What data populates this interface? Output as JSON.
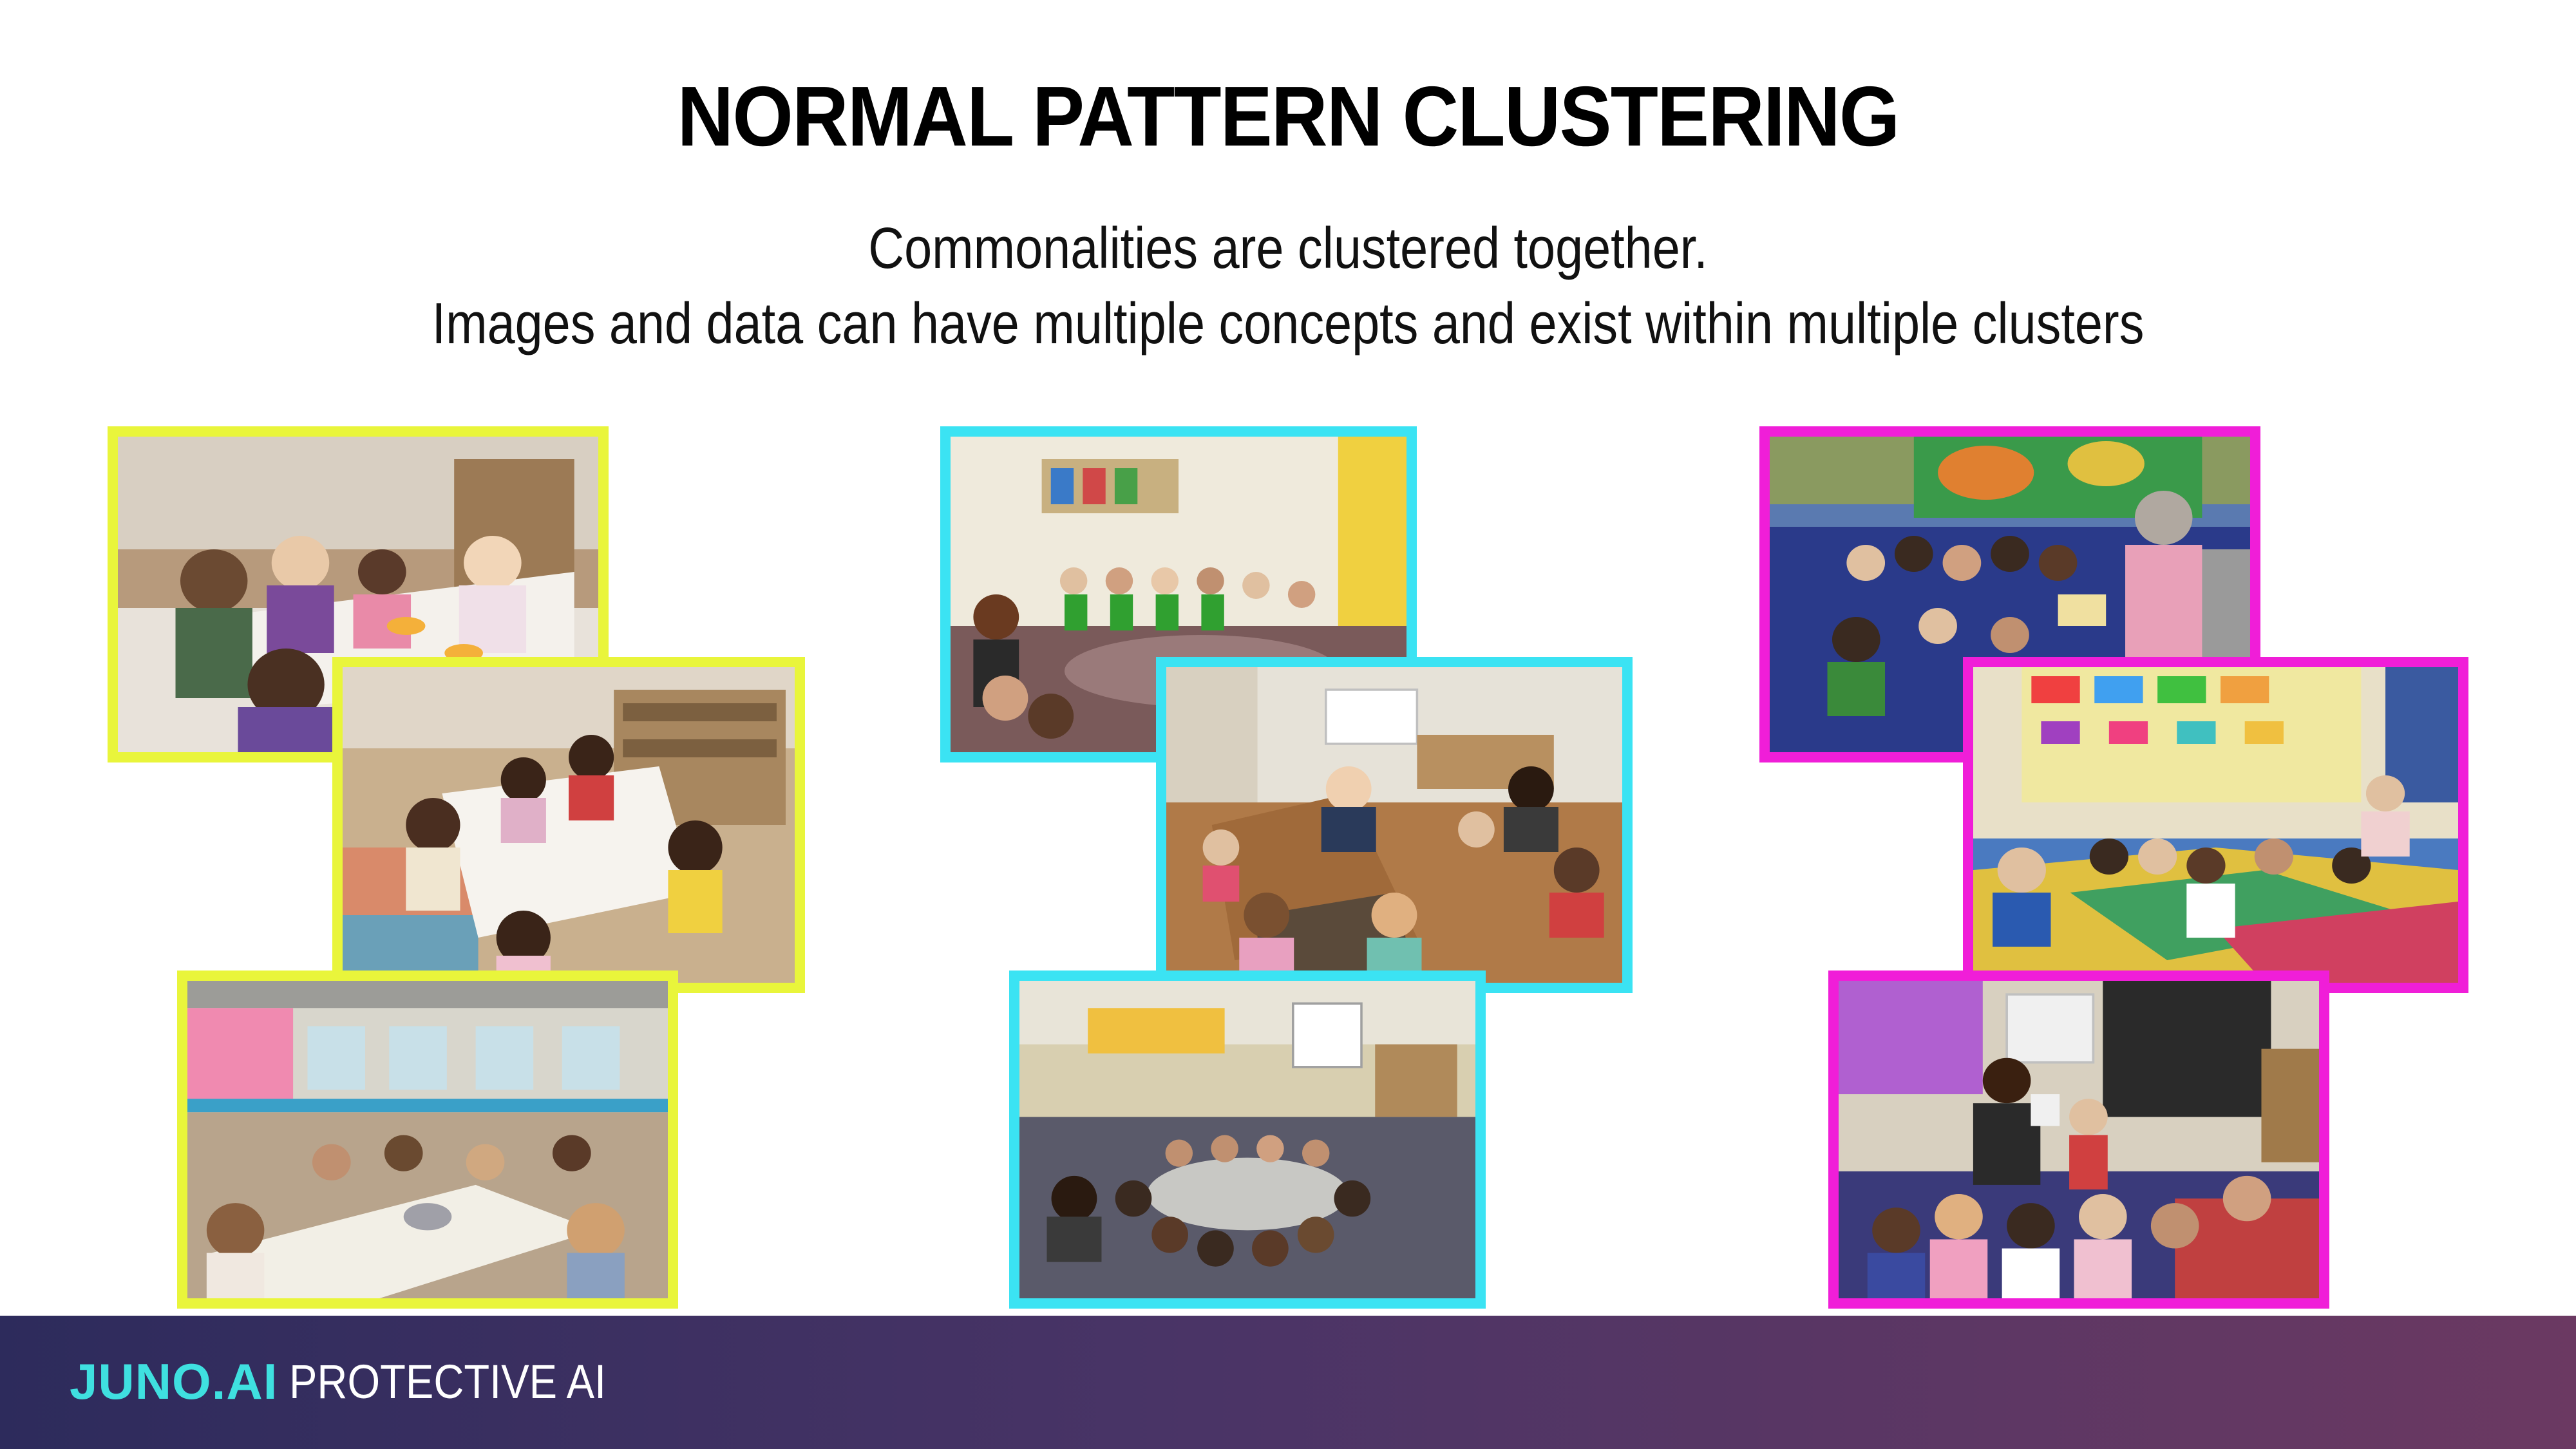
{
  "slide": {
    "title": "NORMAL PATTERN CLUSTERING",
    "subtitle_line1": "Commonalities are clustered together.",
    "subtitle_line2": "Images and data can have multiple concepts and exist within multiple clusters"
  },
  "clusters": [
    {
      "color": "#e9f53b",
      "photos": [
        "children eating at table",
        "children eating at white table",
        "classroom lunch scene"
      ]
    },
    {
      "color": "#3be3f3",
      "photos": [
        "children sitting in circle",
        "circle time on wooden floor",
        "children seated on rug circle"
      ]
    },
    {
      "color": "#f01ed8",
      "photos": [
        "teacher reading to children",
        "children on colorful rug",
        "teacher showing book to children"
      ]
    }
  ],
  "footer": {
    "brand": "JUNO.AI",
    "tagline": "PROTECTIVE AI"
  }
}
